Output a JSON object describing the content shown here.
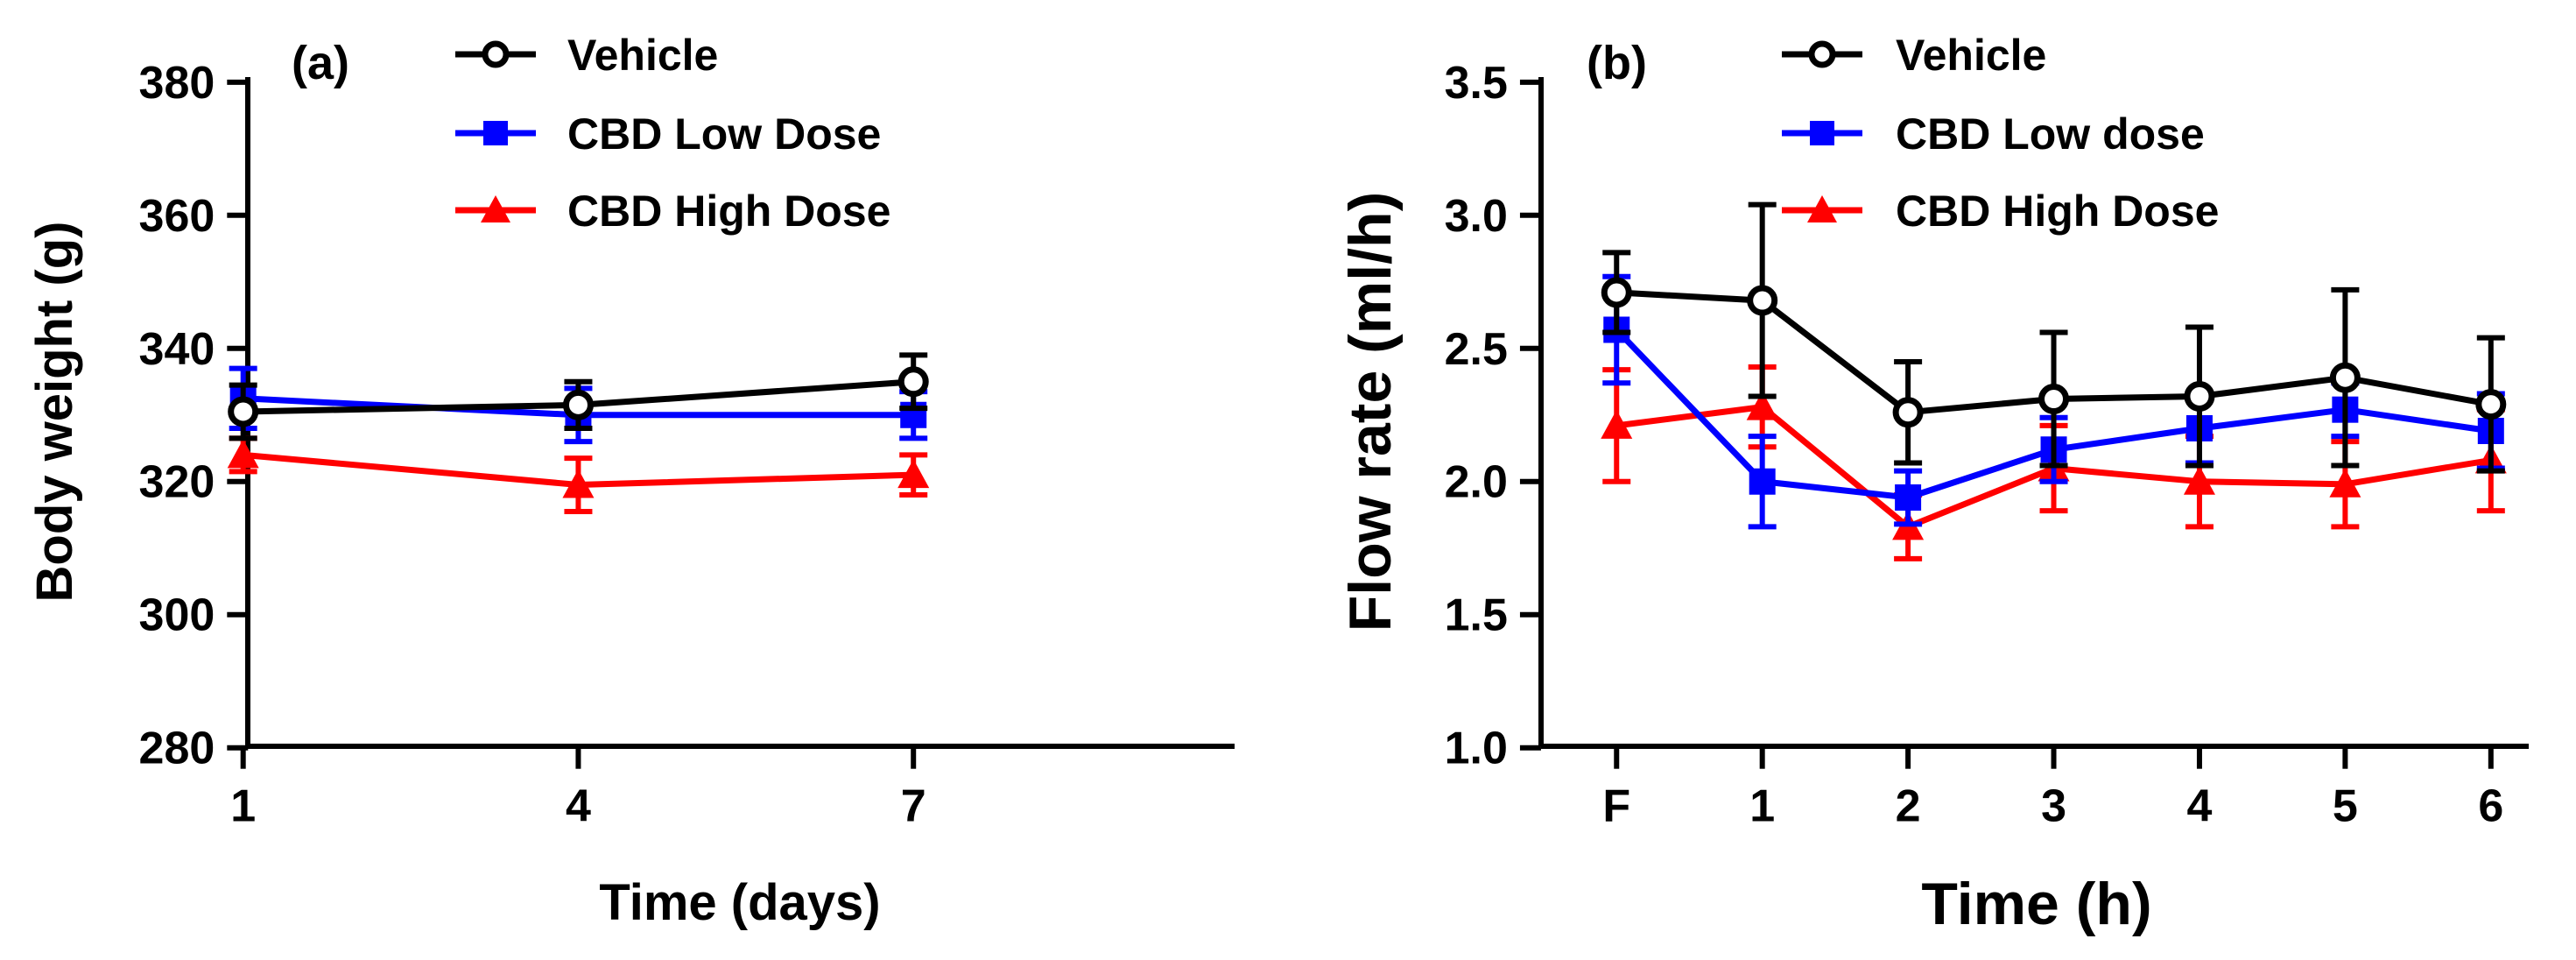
{
  "chart_data": [
    {
      "type": "line",
      "panel_label": "(a)",
      "xlabel": "Time (days)",
      "ylabel": "Body weight (g)",
      "categories": [
        "1",
        "4",
        "7"
      ],
      "ylim": [
        280,
        380
      ],
      "yticks": [
        280,
        300,
        320,
        340,
        360,
        380
      ],
      "yticklabels": [
        "280",
        "300",
        "320",
        "340",
        "360",
        "380"
      ],
      "legend_position": "top",
      "series": [
        {
          "name": "Vehicle",
          "color": "#000000",
          "marker": "circle-open",
          "values": [
            330.5,
            331.5,
            335
          ],
          "errors": [
            4,
            3.5,
            4
          ]
        },
        {
          "name": "CBD Low Dose",
          "color": "#0000FF",
          "marker": "square",
          "values": [
            332.5,
            330,
            330
          ],
          "errors": [
            4.5,
            4,
            3.5
          ]
        },
        {
          "name": "CBD High Dose",
          "color": "#FF0000",
          "marker": "triangle",
          "values": [
            324,
            319.5,
            321
          ],
          "errors": [
            2.5,
            4,
            3
          ]
        }
      ]
    },
    {
      "type": "line",
      "panel_label": "(b)",
      "xlabel": "Time (h)",
      "ylabel": "Flow rate (ml/h)",
      "categories": [
        "F",
        "1",
        "2",
        "3",
        "4",
        "5",
        "6"
      ],
      "ylim": [
        1.0,
        3.5
      ],
      "yticks": [
        1.0,
        1.5,
        2.0,
        2.5,
        3.0,
        3.5
      ],
      "yticklabels": [
        "1.0",
        "1.5",
        "2.0",
        "2.5",
        "3.0",
        "3.5"
      ],
      "legend_position": "top",
      "series": [
        {
          "name": "Vehicle",
          "color": "#000000",
          "marker": "circle-open",
          "values": [
            2.71,
            2.68,
            2.26,
            2.31,
            2.32,
            2.39,
            2.29
          ],
          "errors": [
            0.15,
            0.36,
            0.19,
            0.25,
            0.26,
            0.33,
            0.25
          ]
        },
        {
          "name": "CBD Low dose",
          "color": "#0000FF",
          "marker": "square",
          "values": [
            2.57,
            2.0,
            1.94,
            2.12,
            2.2,
            2.27,
            2.19
          ],
          "errors": [
            0.2,
            0.17,
            0.1,
            0.12,
            0.13,
            0.1,
            0.14
          ]
        },
        {
          "name": "CBD High Dose",
          "color": "#FF0000",
          "marker": "triangle",
          "values": [
            2.21,
            2.28,
            1.83,
            2.05,
            2.0,
            1.99,
            2.08
          ],
          "errors": [
            0.21,
            0.15,
            0.12,
            0.16,
            0.17,
            0.16,
            0.19
          ]
        }
      ]
    }
  ]
}
